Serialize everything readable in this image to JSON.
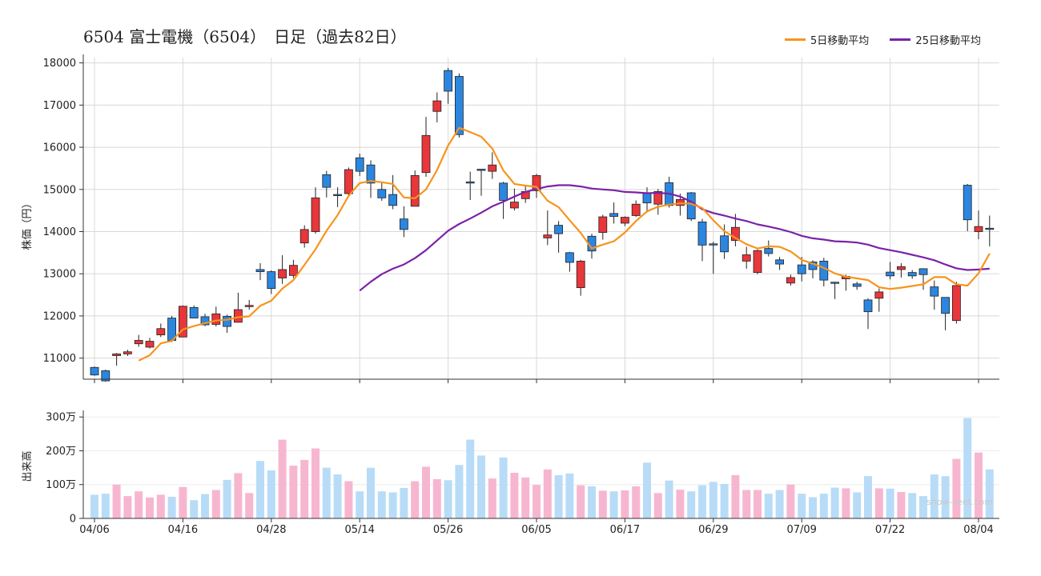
{
  "title": "6504 富士電機（6504）　日足（過去82日）",
  "colors": {
    "up": "#e8363a",
    "down": "#2b86e0",
    "ma5": "#f7941d",
    "ma25": "#7b22a8",
    "vol_up": "#f7b6d0",
    "vol_down": "#b8dcf7",
    "grid": "#d8d8d8"
  },
  "chart_data": [
    {
      "type": "candlestick",
      "ylabel": "株価（円）",
      "ylim": [
        10500,
        18050
      ],
      "yticks": [
        11000,
        12000,
        13000,
        14000,
        15000,
        16000,
        17000,
        18000
      ],
      "x_tick_labels": [
        {
          "i": 0,
          "label": "04/06"
        },
        {
          "i": 8,
          "label": "04/16"
        },
        {
          "i": 16,
          "label": "04/28"
        },
        {
          "i": 24,
          "label": "05/14"
        },
        {
          "i": 32,
          "label": "05/26"
        },
        {
          "i": 40,
          "label": "06/05"
        },
        {
          "i": 48,
          "label": "06/17"
        },
        {
          "i": 56,
          "label": "06/29"
        },
        {
          "i": 64,
          "label": "07/09"
        },
        {
          "i": 72,
          "label": "07/22"
        },
        {
          "i": 80,
          "label": "08/04"
        }
      ],
      "legend": [
        {
          "label": "5日移動平均",
          "color": "#f7941d"
        },
        {
          "label": "25日移動平均",
          "color": "#7b22a8"
        }
      ],
      "candles": [
        [
          10780,
          10800,
          10580,
          10600
        ],
        [
          10700,
          10730,
          10440,
          10460
        ],
        [
          11060,
          11120,
          10820,
          11100
        ],
        [
          11100,
          11200,
          11050,
          11150
        ],
        [
          11340,
          11550,
          11270,
          11420
        ],
        [
          11260,
          11480,
          11230,
          11400
        ],
        [
          11550,
          11820,
          11500,
          11700
        ],
        [
          11950,
          12000,
          11380,
          11420
        ],
        [
          11500,
          12250,
          11500,
          12230
        ],
        [
          12200,
          12250,
          11950,
          11950
        ],
        [
          11980,
          12050,
          11760,
          11790
        ],
        [
          11800,
          12220,
          11750,
          12050
        ],
        [
          11990,
          12030,
          11600,
          11750
        ],
        [
          11850,
          12550,
          11840,
          12150
        ],
        [
          12220,
          12380,
          12150,
          12250
        ],
        [
          13100,
          13250,
          12850,
          13050
        ],
        [
          13050,
          13080,
          12520,
          12650
        ],
        [
          12900,
          13440,
          12760,
          13100
        ],
        [
          12960,
          13330,
          12900,
          13200
        ],
        [
          13730,
          14150,
          13620,
          14050
        ],
        [
          14000,
          15050,
          13950,
          14800
        ],
        [
          15350,
          15440,
          14810,
          15050
        ],
        [
          14880,
          15050,
          14580,
          14860
        ],
        [
          14900,
          15520,
          14820,
          15470
        ],
        [
          15750,
          15850,
          15320,
          15430
        ],
        [
          15580,
          15690,
          14800,
          15150
        ],
        [
          15000,
          15180,
          14730,
          14800
        ],
        [
          14880,
          15340,
          14530,
          14620
        ],
        [
          14300,
          14600,
          13870,
          14050
        ],
        [
          14600,
          15450,
          14600,
          15330
        ],
        [
          15400,
          16720,
          15300,
          16280
        ],
        [
          16850,
          17300,
          16590,
          17100
        ],
        [
          17820,
          17880,
          17030,
          17330
        ],
        [
          17680,
          17750,
          16230,
          16300
        ],
        [
          15180,
          15420,
          14750,
          15150
        ],
        [
          15480,
          15480,
          14850,
          15450
        ],
        [
          15430,
          15880,
          15250,
          15580
        ],
        [
          15150,
          15180,
          14300,
          14740
        ],
        [
          14560,
          15020,
          14500,
          14700
        ],
        [
          14780,
          15100,
          14680,
          14950
        ],
        [
          14970,
          15370,
          14800,
          15330
        ],
        [
          13850,
          14500,
          13680,
          13920
        ],
        [
          14150,
          14250,
          13500,
          13950
        ],
        [
          13500,
          13520,
          13050,
          13270
        ],
        [
          12670,
          13330,
          12480,
          13300
        ],
        [
          13890,
          13950,
          13360,
          13540
        ],
        [
          13980,
          14400,
          13810,
          14350
        ],
        [
          14430,
          14690,
          14190,
          14360
        ],
        [
          14200,
          14360,
          14130,
          14340
        ],
        [
          14380,
          14740,
          14350,
          14650
        ],
        [
          14920,
          15050,
          14450,
          14680
        ],
        [
          14650,
          15010,
          14400,
          14950
        ],
        [
          15160,
          15300,
          14570,
          14620
        ],
        [
          14620,
          14900,
          14380,
          14760
        ],
        [
          14920,
          14940,
          14250,
          14300
        ],
        [
          14230,
          14300,
          13300,
          13680
        ],
        [
          13710,
          13760,
          13000,
          13700
        ],
        [
          13900,
          14170,
          13350,
          13520
        ],
        [
          13790,
          14420,
          13650,
          14100
        ],
        [
          13300,
          13640,
          13120,
          13450
        ],
        [
          13030,
          13580,
          12990,
          13550
        ],
        [
          13600,
          13790,
          13410,
          13480
        ],
        [
          13330,
          13400,
          13090,
          13230
        ],
        [
          12780,
          12980,
          12720,
          12910
        ],
        [
          13210,
          13400,
          12820,
          13000
        ],
        [
          13280,
          13320,
          12890,
          13100
        ],
        [
          13300,
          13380,
          12700,
          12850
        ],
        [
          12800,
          12810,
          12400,
          12780
        ],
        [
          12880,
          12980,
          12600,
          12940
        ],
        [
          12760,
          12810,
          12620,
          12700
        ],
        [
          12380,
          12420,
          11690,
          12100
        ],
        [
          12420,
          12650,
          12100,
          12570
        ],
        [
          13040,
          13280,
          12870,
          12950
        ],
        [
          13100,
          13250,
          12910,
          13170
        ],
        [
          13030,
          13090,
          12880,
          12950
        ],
        [
          13120,
          13130,
          12620,
          12980
        ],
        [
          12690,
          12840,
          12150,
          12470
        ],
        [
          12440,
          12440,
          11660,
          12060
        ],
        [
          11890,
          12810,
          11820,
          12720
        ],
        [
          15100,
          15130,
          14010,
          14280
        ],
        [
          14000,
          14500,
          13820,
          14120
        ],
        [
          14080,
          14380,
          13650,
          14070
        ]
      ],
      "ma5": [
        null,
        null,
        null,
        null,
        10940,
        11070,
        11350,
        11410,
        11680,
        11760,
        11830,
        11890,
        11910,
        11970,
        11990,
        12240,
        12360,
        12650,
        12850,
        13210,
        13580,
        14020,
        14390,
        14850,
        15150,
        15200,
        15170,
        15130,
        14810,
        14790,
        15000,
        15460,
        16040,
        16460,
        16360,
        16250,
        15970,
        15450,
        15130,
        15090,
        15060,
        14730,
        14580,
        14270,
        13970,
        13600,
        13690,
        13770,
        13980,
        14250,
        14480,
        14590,
        14640,
        14670,
        14660,
        14560,
        14270,
        14010,
        13850,
        13700,
        13600,
        13650,
        13640,
        13530,
        13330,
        13240,
        13140,
        13010,
        12930,
        12890,
        12850,
        12680,
        12640,
        12670,
        12710,
        12750,
        12920,
        12920,
        12750,
        12720,
        13010,
        13480
      ],
      "ma25": [
        null,
        null,
        null,
        null,
        null,
        null,
        null,
        null,
        null,
        null,
        null,
        null,
        null,
        null,
        null,
        null,
        null,
        null,
        null,
        null,
        null,
        null,
        null,
        null,
        12600,
        12810,
        12990,
        13120,
        13220,
        13370,
        13560,
        13790,
        14020,
        14180,
        14310,
        14450,
        14600,
        14710,
        14830,
        14940,
        15010,
        15070,
        15100,
        15100,
        15070,
        15020,
        15000,
        14980,
        14940,
        14930,
        14910,
        14920,
        14900,
        14830,
        14710,
        14530,
        14440,
        14380,
        14310,
        14250,
        14170,
        14120,
        14060,
        13990,
        13900,
        13840,
        13810,
        13770,
        13760,
        13740,
        13690,
        13610,
        13560,
        13510,
        13450,
        13390,
        13320,
        13220,
        13130,
        13090,
        13100,
        13120
      ]
    },
    {
      "type": "bar",
      "ylabel": "出来高",
      "ylim": [
        0,
        3100000
      ],
      "yticks": [
        {
          "value": 0,
          "label": "0"
        },
        {
          "value": 1000000,
          "label": "100万"
        },
        {
          "value": 2000000,
          "label": "200万"
        },
        {
          "value": 3000000,
          "label": "300万"
        }
      ],
      "volume_man": [
        70,
        73,
        100,
        66,
        80,
        62,
        70,
        64,
        93,
        54,
        72,
        84,
        114,
        134,
        75,
        170,
        142,
        233,
        156,
        173,
        207,
        150,
        130,
        110,
        80,
        150,
        80,
        77,
        90,
        110,
        153,
        116,
        113,
        158,
        233,
        186,
        118,
        180,
        135,
        121,
        99,
        145,
        128,
        133,
        98,
        95,
        82,
        80,
        83,
        95,
        165,
        75,
        112,
        85,
        80,
        98,
        108,
        102,
        128,
        84,
        84,
        73,
        84,
        100,
        73,
        63,
        73,
        91,
        89,
        77,
        125,
        89,
        88,
        78,
        75,
        66,
        130,
        125,
        176,
        297,
        195,
        145
      ]
    }
  ],
  "watermark": "show-zeet.com"
}
